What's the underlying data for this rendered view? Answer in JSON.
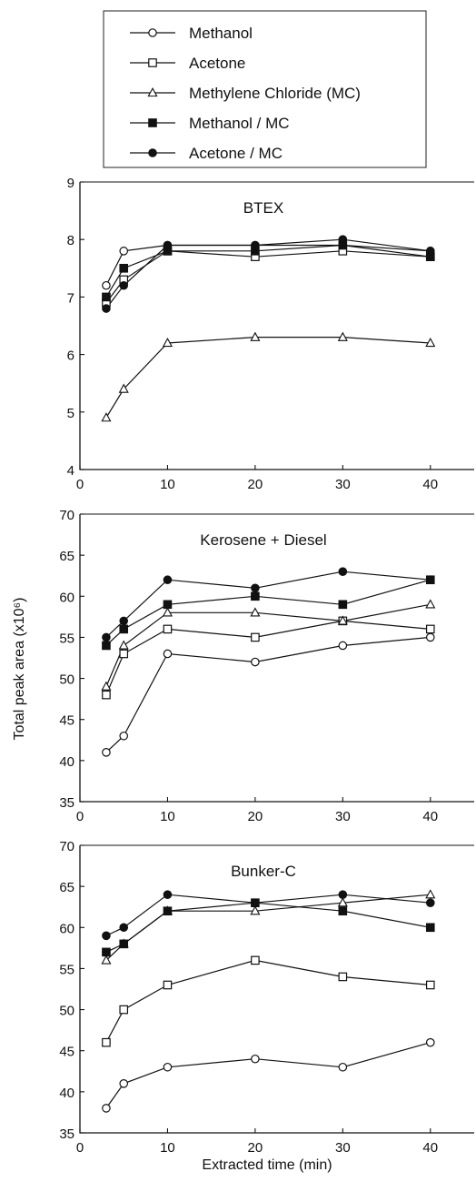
{
  "legend": {
    "items": [
      {
        "label": "Methanol",
        "marker": "circle-open"
      },
      {
        "label": "Acetone",
        "marker": "square-open"
      },
      {
        "label": "Methylene Chloride (MC)",
        "marker": "triangle-open"
      },
      {
        "label": "Methanol / MC",
        "marker": "square-filled"
      },
      {
        "label": "Acetone / MC",
        "marker": "circle-filled"
      }
    ]
  },
  "colors": {
    "line": "#111111",
    "axis": "#111111",
    "open_fill": "#ffffff",
    "filled": "#111111"
  },
  "shared_ylabel": "Total peak area (x10⁶)",
  "chart_data": [
    {
      "type": "line",
      "title": "BTEX",
      "x": [
        3,
        5,
        10,
        20,
        30,
        40
      ],
      "xlim": [
        0,
        45
      ],
      "ylim": [
        4,
        9
      ],
      "yticks": [
        4,
        5,
        6,
        7,
        8,
        9
      ],
      "xticks": [
        0,
        10,
        20,
        30,
        40
      ],
      "xlabel": "",
      "series": [
        {
          "name": "Methanol",
          "marker": "circle-open",
          "values": [
            7.2,
            7.8,
            7.9,
            7.9,
            7.9,
            7.8
          ]
        },
        {
          "name": "Acetone",
          "marker": "square-open",
          "values": [
            6.9,
            7.3,
            7.8,
            7.7,
            7.8,
            7.7
          ]
        },
        {
          "name": "Methylene Chloride (MC)",
          "marker": "triangle-open",
          "values": [
            4.9,
            5.4,
            6.2,
            6.3,
            6.3,
            6.2
          ]
        },
        {
          "name": "Methanol / MC",
          "marker": "square-filled",
          "values": [
            7.0,
            7.5,
            7.8,
            7.8,
            7.9,
            7.7
          ]
        },
        {
          "name": "Acetone / MC",
          "marker": "circle-filled",
          "values": [
            6.8,
            7.2,
            7.9,
            7.9,
            8.0,
            7.8
          ]
        }
      ]
    },
    {
      "type": "line",
      "title": "Kerosene + Diesel",
      "x": [
        3,
        5,
        10,
        20,
        30,
        40
      ],
      "xlim": [
        0,
        45
      ],
      "ylim": [
        35,
        70
      ],
      "yticks": [
        35,
        40,
        45,
        50,
        55,
        60,
        65,
        70
      ],
      "xticks": [
        0,
        10,
        20,
        30,
        40
      ],
      "xlabel": "",
      "series": [
        {
          "name": "Methanol",
          "marker": "circle-open",
          "values": [
            41,
            43,
            53,
            52,
            54,
            55
          ]
        },
        {
          "name": "Acetone",
          "marker": "square-open",
          "values": [
            48,
            53,
            56,
            55,
            57,
            56
          ]
        },
        {
          "name": "Methylene Chloride (MC)",
          "marker": "triangle-open",
          "values": [
            49,
            54,
            58,
            58,
            57,
            59
          ]
        },
        {
          "name": "Methanol / MC",
          "marker": "square-filled",
          "values": [
            54,
            56,
            59,
            60,
            59,
            62
          ]
        },
        {
          "name": "Acetone / MC",
          "marker": "circle-filled",
          "values": [
            55,
            57,
            62,
            61,
            63,
            62
          ]
        }
      ]
    },
    {
      "type": "line",
      "title": "Bunker-C",
      "x": [
        3,
        5,
        10,
        20,
        30,
        40
      ],
      "xlim": [
        0,
        45
      ],
      "ylim": [
        35,
        70
      ],
      "yticks": [
        35,
        40,
        45,
        50,
        55,
        60,
        65,
        70
      ],
      "xticks": [
        0,
        10,
        20,
        30,
        40
      ],
      "xlabel": "Extracted time (min)",
      "series": [
        {
          "name": "Methanol",
          "marker": "circle-open",
          "values": [
            38,
            41,
            43,
            44,
            43,
            46
          ]
        },
        {
          "name": "Acetone",
          "marker": "square-open",
          "values": [
            46,
            50,
            53,
            56,
            54,
            53
          ]
        },
        {
          "name": "Methylene Chloride (MC)",
          "marker": "triangle-open",
          "values": [
            56,
            58,
            62,
            62,
            63,
            64
          ]
        },
        {
          "name": "Methanol / MC",
          "marker": "square-filled",
          "values": [
            57,
            58,
            62,
            63,
            62,
            60
          ]
        },
        {
          "name": "Acetone / MC",
          "marker": "circle-filled",
          "values": [
            59,
            60,
            64,
            63,
            64,
            63
          ]
        }
      ]
    }
  ]
}
